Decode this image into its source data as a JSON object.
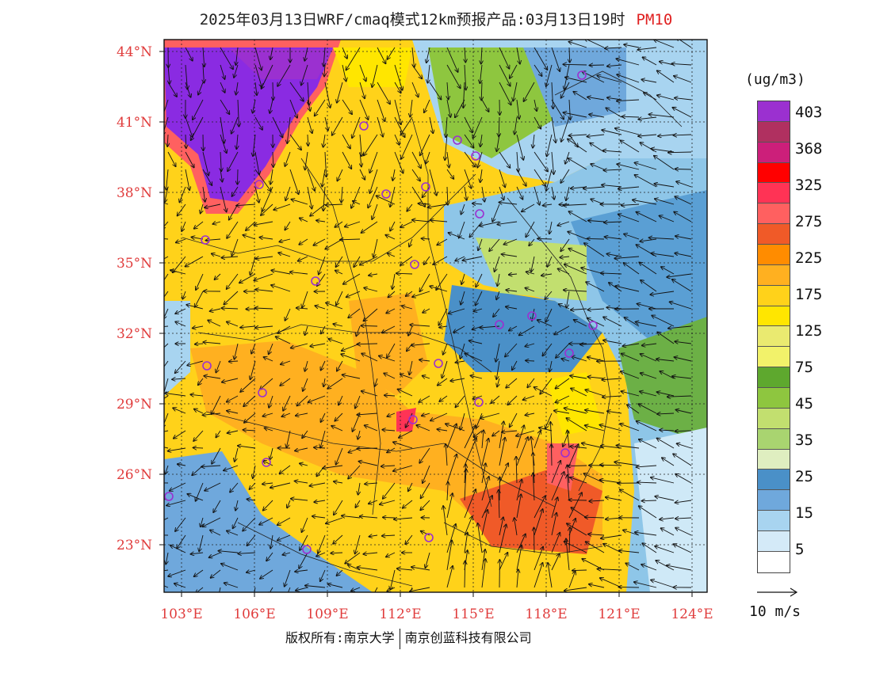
{
  "title": {
    "main": "2025年03月13日WRF/cmaq模式12km预报产品:03月13日19时",
    "pollutant": "PM10"
  },
  "lat_labels": [
    "44°N",
    "41°N",
    "38°N",
    "35°N",
    "32°N",
    "29°N",
    "26°N",
    "23°N"
  ],
  "lon_labels": [
    "103°E",
    "106°E",
    "109°E",
    "112°E",
    "115°E",
    "118°E",
    "121°E",
    "124°E"
  ],
  "legend": {
    "unit": "(ug/m3)",
    "levels": [
      "403",
      "368",
      "325",
      "275",
      "225",
      "175",
      "125",
      "75",
      "45",
      "35",
      "25",
      "15",
      "5"
    ],
    "colors": [
      "#8a2be2",
      "#9b30d0",
      "#b03060",
      "#cc1f7a",
      "#ff0000",
      "#ff3355",
      "#ff6060",
      "#f05a28",
      "#ff8c00",
      "#ffb020",
      "#ffd21a",
      "#ffe600",
      "#eaea70",
      "#f2f26a",
      "#5ea82e",
      "#8ec63f",
      "#c2df6f",
      "#a9d470",
      "#dfeec0",
      "#4a90c8",
      "#6fa8dc",
      "#a8d4f0",
      "#d4eaf8",
      "#ffffff"
    ],
    "vector_label": "10 m/s"
  },
  "credit": {
    "left": "版权所有:南京大学",
    "right": "南京创蓝科技有限公司"
  }
}
